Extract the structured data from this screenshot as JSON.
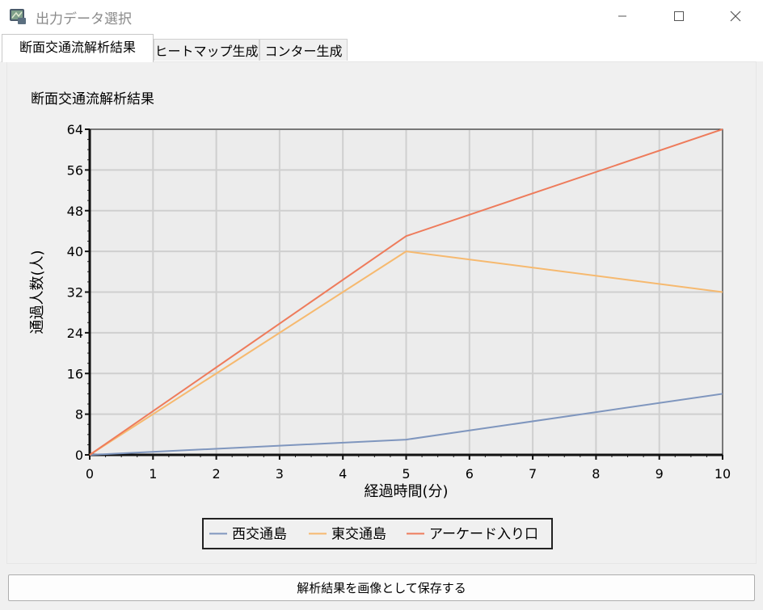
{
  "window": {
    "title": "出力データ選択",
    "icon": "map-app-icon",
    "controls": {
      "minimize": "minimize-icon",
      "maximize": "maximize-icon",
      "close": "close-icon"
    }
  },
  "tabs": [
    {
      "label": "断面交通流解析結果",
      "active": true
    },
    {
      "label": "ヒートマップ生成",
      "active": false
    },
    {
      "label": "コンター生成",
      "active": false
    }
  ],
  "save_button": {
    "label": "解析結果を画像として保存する"
  },
  "chart_data": {
    "type": "line",
    "title": "断面交通流解析結果",
    "xlabel": "経過時間(分)",
    "ylabel": "通過人数(人)",
    "x": [
      0,
      5,
      10
    ],
    "xlim": [
      0,
      10
    ],
    "ylim": [
      0,
      64
    ],
    "xticks": [
      0,
      1,
      2,
      3,
      4,
      5,
      6,
      7,
      8,
      9,
      10
    ],
    "yticks": [
      0,
      8,
      16,
      24,
      32,
      40,
      48,
      56,
      64
    ],
    "grid": true,
    "legend_position": "bottom",
    "series": [
      {
        "name": "西交通島",
        "values": [
          0,
          3,
          12
        ],
        "color": "#7f96be"
      },
      {
        "name": "東交通島",
        "values": [
          0,
          40,
          32
        ],
        "color": "#f6b96f"
      },
      {
        "name": "アーケード入り口",
        "values": [
          0,
          43,
          64
        ],
        "color": "#ee7b5b"
      }
    ]
  }
}
